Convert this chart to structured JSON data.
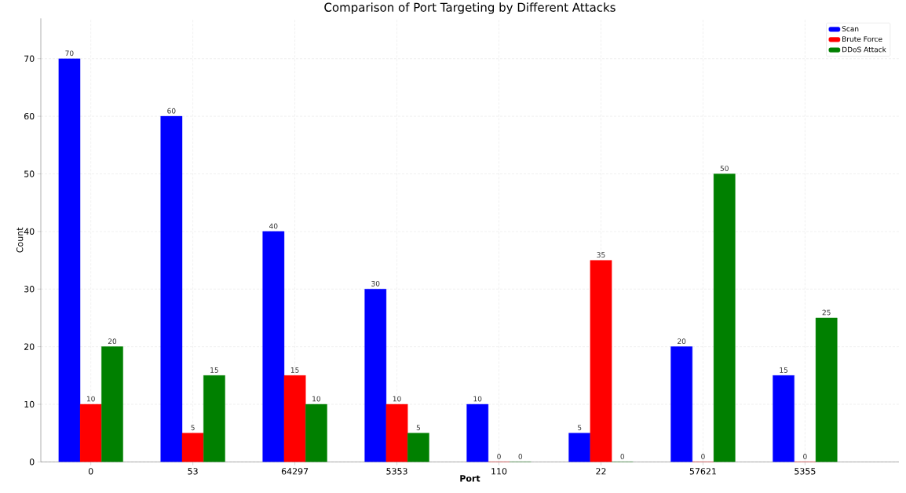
{
  "chart_data": {
    "type": "bar",
    "title": "Comparison of Port Targeting by Different Attacks",
    "xlabel": "Port",
    "ylabel": "Count",
    "categories": [
      "0",
      "53",
      "64297",
      "5353",
      "110",
      "22",
      "57621",
      "5355"
    ],
    "series": [
      {
        "name": "Scan",
        "color": "#0000ff",
        "values": [
          70,
          60,
          40,
          30,
          10,
          5,
          20,
          15
        ]
      },
      {
        "name": "Brute Force",
        "color": "#ff0000",
        "values": [
          10,
          5,
          15,
          10,
          0,
          35,
          0,
          0
        ]
      },
      {
        "name": "DDoS Attack",
        "color": "#008000",
        "values": [
          20,
          15,
          10,
          5,
          0,
          0,
          50,
          25
        ]
      }
    ],
    "ylim": [
      0,
      77
    ],
    "yticks": [
      0,
      10,
      20,
      30,
      40,
      50,
      60,
      70
    ],
    "grid": true,
    "legend": "top right",
    "data_labels": true
  }
}
